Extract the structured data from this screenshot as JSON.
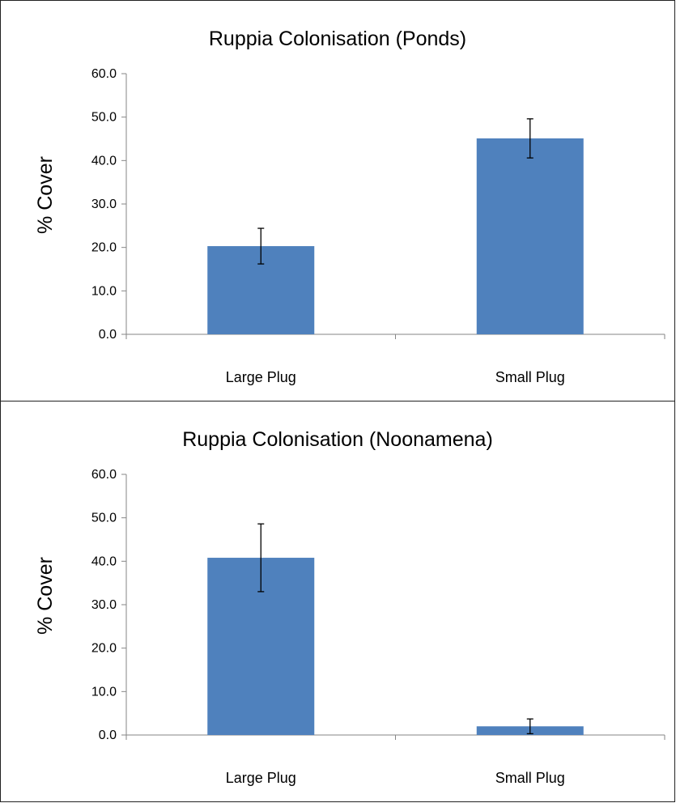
{
  "chart_data": [
    {
      "type": "bar",
      "title": "Ruppia Colonisation (Ponds)",
      "xlabel": "",
      "ylabel": "% Cover",
      "categories": [
        "Large Plug",
        "Small Plug"
      ],
      "values": [
        20.3,
        45.1
      ],
      "errors": [
        4.1,
        4.5
      ],
      "ylim": [
        0,
        60
      ],
      "yticks": [
        "0.0",
        "10.0",
        "20.0",
        "30.0",
        "40.0",
        "50.0",
        "60.0"
      ],
      "grid": false,
      "legend": "none",
      "bar_color": "#4f81bd"
    },
    {
      "type": "bar",
      "title": "Ruppia Colonisation (Noonamena)",
      "xlabel": "",
      "ylabel": "% Cover",
      "categories": [
        "Large Plug",
        "Small Plug"
      ],
      "values": [
        40.8,
        2.0
      ],
      "errors": [
        7.8,
        1.7
      ],
      "ylim": [
        0,
        60
      ],
      "yticks": [
        "0.0",
        "10.0",
        "20.0",
        "30.0",
        "40.0",
        "50.0",
        "60.0"
      ],
      "grid": false,
      "legend": "none",
      "bar_color": "#4f81bd"
    }
  ]
}
